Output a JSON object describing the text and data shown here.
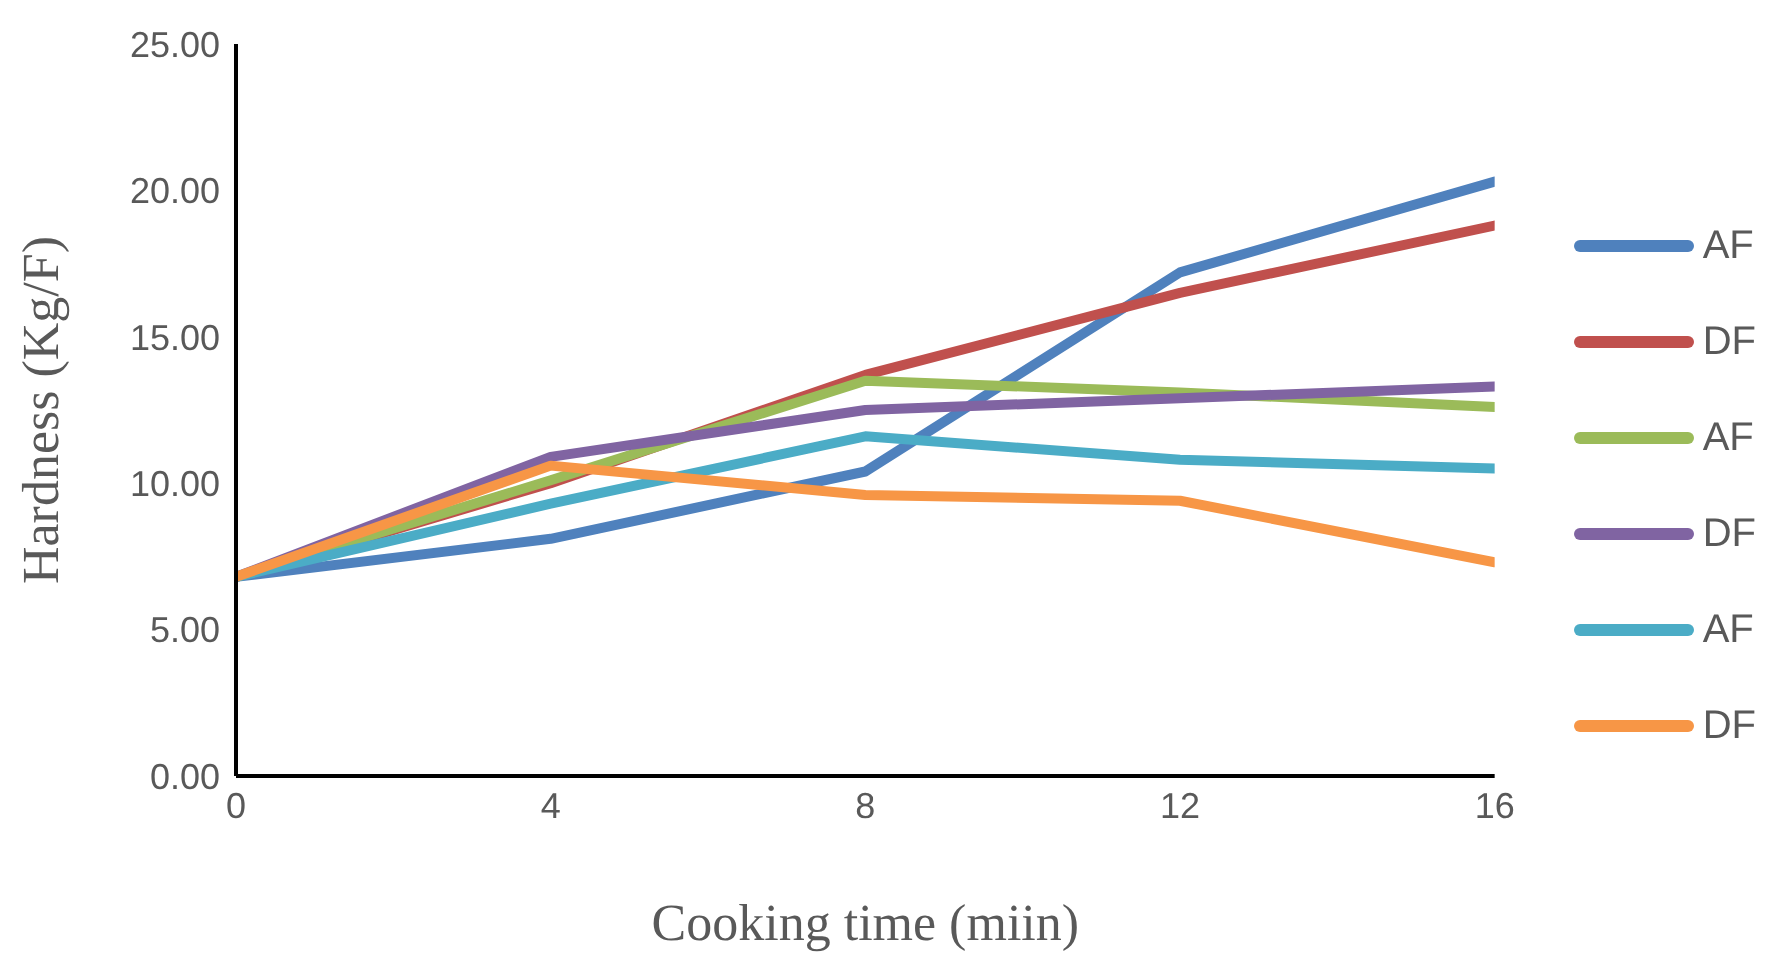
{
  "chart_data": {
    "type": "line",
    "xlabel": "Cooking time (miin)",
    "ylabel": "Hardness (Kg/F)",
    "x": [
      0,
      4,
      8,
      12,
      16
    ],
    "series": [
      {
        "name": "AF",
        "color": "#4f81bd",
        "values": [
          6.8,
          8.1,
          10.4,
          17.2,
          20.3
        ]
      },
      {
        "name": "DF",
        "color": "#c0504d",
        "values": [
          6.8,
          10.0,
          13.7,
          16.5,
          18.8
        ]
      },
      {
        "name": "AF",
        "color": "#9bbb59",
        "values": [
          6.8,
          10.1,
          13.5,
          13.1,
          12.6
        ]
      },
      {
        "name": "DF",
        "color": "#8064a2",
        "values": [
          6.8,
          10.9,
          12.5,
          12.9,
          13.3
        ]
      },
      {
        "name": "AF",
        "color": "#4bacc6",
        "values": [
          6.8,
          9.3,
          11.6,
          10.8,
          10.5
        ]
      },
      {
        "name": "DF",
        "color": "#f79646",
        "values": [
          6.8,
          10.6,
          9.6,
          9.4,
          7.3
        ]
      }
    ],
    "xlim": [
      0,
      16
    ],
    "xticks": [
      0,
      4,
      8,
      12,
      16
    ],
    "ylim": [
      0,
      25
    ],
    "yticks": [
      {
        "value": 0,
        "label": "0.00"
      },
      {
        "value": 5,
        "label": "5.00"
      },
      {
        "value": 10,
        "label": "10.00"
      },
      {
        "value": 15,
        "label": "15.00"
      },
      {
        "value": 20,
        "label": "20.00"
      },
      {
        "value": 25,
        "label": "25.00"
      }
    ],
    "grid": false,
    "legend": "right",
    "marker": "none",
    "line_style": "solid"
  }
}
